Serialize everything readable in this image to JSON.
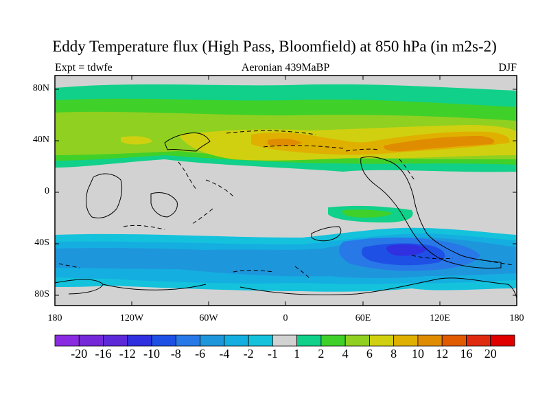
{
  "title": "Eddy Temperature flux (High Pass, Bloomfield) at 850 hPa (in m2s-2)",
  "subtitle_left": "Expt = tdwfe",
  "subtitle_center": "Aeronian 439MaBP",
  "subtitle_right": "DJF",
  "lat_ticks": [
    "80N",
    "40N",
    "0",
    "40S",
    "80S"
  ],
  "lon_ticks": [
    "180",
    "120W",
    "60W",
    "0",
    "60E",
    "120E",
    "180"
  ],
  "colorbar": {
    "labels": [
      "-20",
      "-16",
      "-12",
      "-10",
      "-8",
      "-6",
      "-4",
      "-2",
      "-1",
      "1",
      "2",
      "4",
      "6",
      "8",
      "10",
      "12",
      "16",
      "20"
    ],
    "colors": [
      "#8a2be2",
      "#7528d8",
      "#5d28d8",
      "#3030e0",
      "#1e50e6",
      "#2878e8",
      "#1e96dc",
      "#14aee0",
      "#14c2dc",
      "#d2d2d2",
      "#10d08a",
      "#40d02a",
      "#90d020",
      "#d0d010",
      "#e0b000",
      "#e08c00",
      "#e05a00",
      "#e02a10",
      "#e00000"
    ]
  },
  "map_colors": {
    "land_gray": "#d2d2d2",
    "pos1": "#10d08a",
    "pos2": "#40d02a",
    "pos4": "#90d020",
    "pos6": "#d0d010",
    "pos8": "#e0b000",
    "pos10": "#e08c00",
    "neg1": "#14c2dc",
    "neg2": "#14aee0",
    "neg4": "#1e96dc",
    "neg6": "#2878e8",
    "neg8": "#1e50e6",
    "neg10": "#3030e0"
  }
}
